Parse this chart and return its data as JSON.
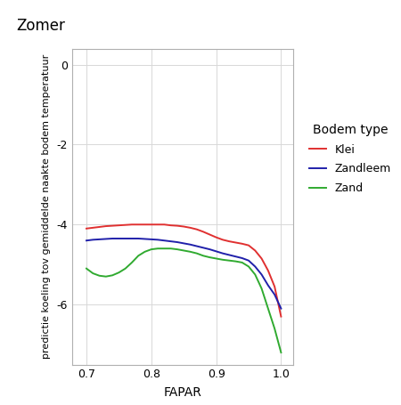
{
  "title": "Zomer",
  "xlabel": "FAPAR",
  "ylabel": "predictie koeling tov gemiddelde naakte bodem temperatuur",
  "xlim": [
    0.678,
    1.018
  ],
  "ylim": [
    -7.5,
    0.4
  ],
  "yticks": [
    0,
    -2,
    -4,
    -6
  ],
  "xticks": [
    0.7,
    0.8,
    0.9,
    1.0
  ],
  "background_color": "#ffffff",
  "grid_color": "#d8d8d8",
  "legend_title": "Bodem type",
  "series": {
    "Klei": {
      "color": "#e03030",
      "x": [
        0.7,
        0.71,
        0.72,
        0.73,
        0.74,
        0.75,
        0.76,
        0.77,
        0.78,
        0.79,
        0.8,
        0.81,
        0.82,
        0.83,
        0.84,
        0.85,
        0.86,
        0.87,
        0.88,
        0.89,
        0.9,
        0.91,
        0.92,
        0.93,
        0.94,
        0.95,
        0.96,
        0.97,
        0.98,
        0.99,
        1.0
      ],
      "y": [
        -4.1,
        -4.08,
        -4.06,
        -4.04,
        -4.03,
        -4.02,
        -4.01,
        -4.0,
        -4.0,
        -4.0,
        -4.0,
        -4.0,
        -4.0,
        -4.02,
        -4.03,
        -4.05,
        -4.08,
        -4.12,
        -4.18,
        -4.25,
        -4.32,
        -4.38,
        -4.42,
        -4.45,
        -4.48,
        -4.52,
        -4.65,
        -4.85,
        -5.15,
        -5.55,
        -6.3
      ]
    },
    "Zandleem": {
      "color": "#2020aa",
      "x": [
        0.7,
        0.71,
        0.72,
        0.73,
        0.74,
        0.75,
        0.76,
        0.77,
        0.78,
        0.79,
        0.8,
        0.81,
        0.82,
        0.83,
        0.84,
        0.85,
        0.86,
        0.87,
        0.88,
        0.89,
        0.9,
        0.91,
        0.92,
        0.93,
        0.94,
        0.95,
        0.96,
        0.97,
        0.98,
        0.99,
        1.0
      ],
      "y": [
        -4.4,
        -4.38,
        -4.37,
        -4.36,
        -4.35,
        -4.35,
        -4.35,
        -4.35,
        -4.35,
        -4.36,
        -4.37,
        -4.38,
        -4.4,
        -4.42,
        -4.44,
        -4.47,
        -4.5,
        -4.54,
        -4.58,
        -4.62,
        -4.67,
        -4.72,
        -4.76,
        -4.8,
        -4.84,
        -4.9,
        -5.05,
        -5.25,
        -5.52,
        -5.75,
        -6.1
      ]
    },
    "Zand": {
      "color": "#30aa30",
      "x": [
        0.7,
        0.71,
        0.72,
        0.73,
        0.74,
        0.75,
        0.76,
        0.77,
        0.78,
        0.79,
        0.8,
        0.81,
        0.82,
        0.83,
        0.84,
        0.85,
        0.86,
        0.87,
        0.88,
        0.89,
        0.9,
        0.91,
        0.92,
        0.93,
        0.94,
        0.95,
        0.96,
        0.97,
        0.98,
        0.99,
        1.0
      ],
      "y": [
        -5.1,
        -5.22,
        -5.28,
        -5.3,
        -5.27,
        -5.2,
        -5.1,
        -4.95,
        -4.78,
        -4.68,
        -4.62,
        -4.6,
        -4.6,
        -4.6,
        -4.62,
        -4.65,
        -4.68,
        -4.72,
        -4.78,
        -4.82,
        -4.85,
        -4.88,
        -4.9,
        -4.92,
        -4.95,
        -5.05,
        -5.25,
        -5.6,
        -6.1,
        -6.6,
        -7.2
      ]
    }
  }
}
